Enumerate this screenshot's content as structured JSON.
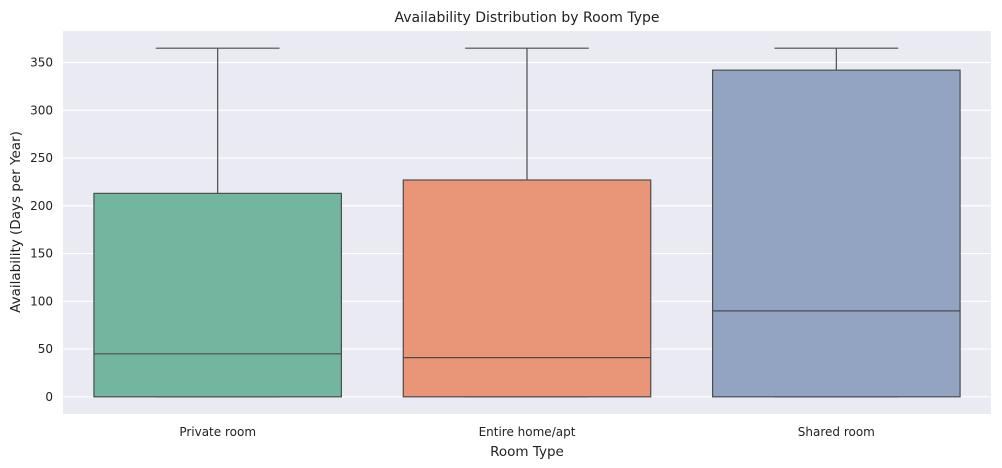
{
  "chart_data": {
    "type": "box",
    "title": "Availability Distribution by Room Type",
    "xlabel": "Room Type",
    "ylabel": "Availability (Days per Year)",
    "ylim": [
      -18,
      383
    ],
    "yticks": [
      0,
      50,
      100,
      150,
      200,
      250,
      300,
      350
    ],
    "grid": true,
    "categories": [
      "Private room",
      "Entire home/apt",
      "Shared room"
    ],
    "boxes": [
      {
        "category": "Private room",
        "min": 0,
        "q1": 0,
        "median": 45,
        "q3": 213,
        "max": 365,
        "color": "#72b6a0"
      },
      {
        "category": "Entire home/apt",
        "min": 0,
        "q1": 0,
        "median": 41,
        "q3": 227,
        "max": 365,
        "color": "#e89677"
      },
      {
        "category": "Shared room",
        "min": 0,
        "q1": 0,
        "median": 90,
        "q3": 342,
        "max": 365,
        "color": "#93a3c2"
      }
    ]
  },
  "colors": {
    "plot_background": "#eaeaf2",
    "grid": "#ffffff",
    "line": "#4d4d4d"
  }
}
